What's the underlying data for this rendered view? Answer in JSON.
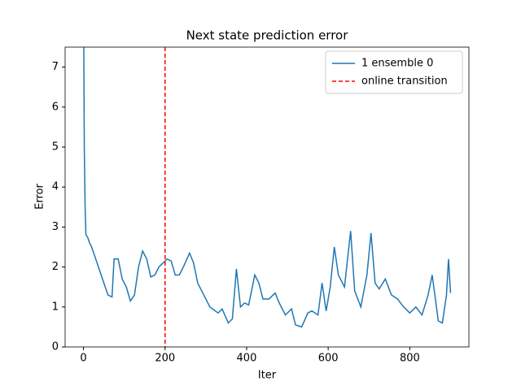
{
  "chart_data": {
    "type": "line",
    "title": "Next state prediction error",
    "x_label": "Iter",
    "y_label": "Error",
    "x": [
      0,
      2,
      4,
      6,
      10,
      15,
      20,
      30,
      40,
      50,
      60,
      70,
      75,
      85,
      95,
      105,
      115,
      125,
      135,
      145,
      155,
      165,
      175,
      185,
      195,
      205,
      215,
      225,
      235,
      245,
      260,
      270,
      280,
      295,
      310,
      330,
      340,
      355,
      365,
      375,
      385,
      395,
      405,
      420,
      430,
      440,
      455,
      470,
      480,
      495,
      510,
      520,
      535,
      550,
      560,
      575,
      585,
      595,
      605,
      615,
      625,
      640,
      655,
      665,
      680,
      695,
      705,
      715,
      725,
      740,
      755,
      770,
      785,
      800,
      815,
      830,
      845,
      855,
      870,
      880,
      890,
      895,
      900
    ],
    "series": [
      {
        "name": "1 ensemble 0",
        "color": "#1f77b4",
        "values": [
          9.0,
          5.0,
          3.5,
          2.8,
          2.75,
          2.6,
          2.5,
          2.2,
          1.9,
          1.6,
          1.3,
          1.25,
          2.2,
          2.2,
          1.7,
          1.5,
          1.15,
          1.3,
          2.0,
          2.4,
          2.2,
          1.75,
          1.8,
          2.0,
          2.1,
          2.2,
          2.15,
          1.8,
          1.8,
          2.0,
          2.35,
          2.1,
          1.6,
          1.3,
          1.0,
          0.85,
          0.95,
          0.6,
          0.7,
          1.95,
          1.0,
          1.1,
          1.05,
          1.8,
          1.6,
          1.2,
          1.2,
          1.35,
          1.1,
          0.8,
          0.95,
          0.55,
          0.5,
          0.85,
          0.9,
          0.8,
          1.6,
          0.9,
          1.5,
          2.5,
          1.8,
          1.5,
          2.9,
          1.4,
          1.0,
          1.8,
          2.85,
          1.6,
          1.45,
          1.7,
          1.3,
          1.2,
          1.0,
          0.85,
          1.0,
          0.8,
          1.3,
          1.8,
          0.65,
          0.6,
          1.3,
          2.2,
          1.35
        ]
      }
    ],
    "vlines": [
      {
        "name": "online transition",
        "color": "#ff0000",
        "x": 200
      }
    ],
    "xlim": [
      -45,
      945
    ],
    "ylim": [
      0,
      7.5
    ],
    "xticks": [
      0,
      200,
      400,
      600,
      800
    ],
    "yticks": [
      0,
      1,
      2,
      3,
      4,
      5,
      6,
      7
    ],
    "legend": "upper right"
  }
}
